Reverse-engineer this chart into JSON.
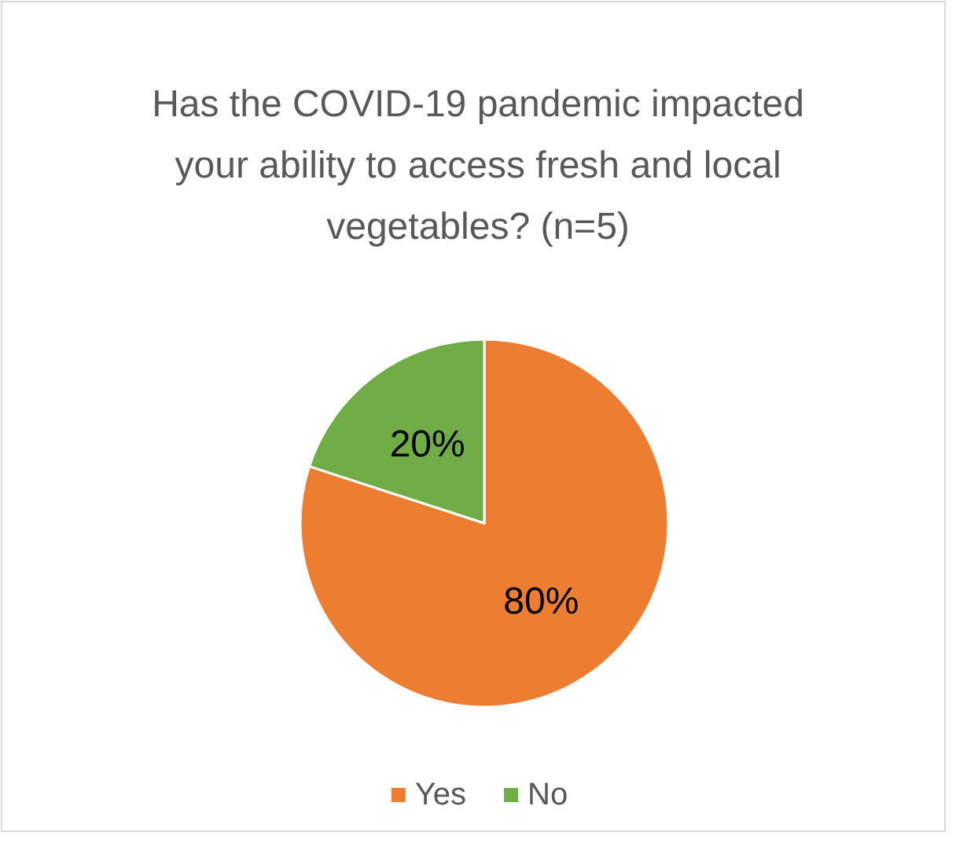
{
  "chart_data": {
    "type": "pie",
    "title": "Has the COVID-19 pandemic impacted your ability to access fresh and local vegetables? (n=5)",
    "categories": [
      "Yes",
      "No"
    ],
    "values": [
      80,
      20
    ],
    "colors": [
      "#ed7d31",
      "#70ad47"
    ],
    "value_labels": [
      "80%",
      "20%"
    ],
    "legend": "bottom"
  }
}
